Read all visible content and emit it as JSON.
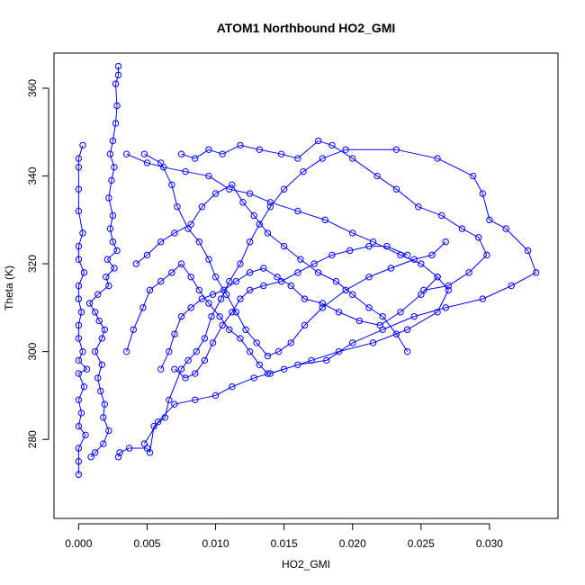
{
  "chart_data": {
    "type": "scatter",
    "title": "ATOM1 Northbound HO2_GMI",
    "xlabel": "HO2_GMI",
    "ylabel": "Theta (K)",
    "xlim": [
      -0.0018,
      0.035
    ],
    "ylim": [
      262,
      368
    ],
    "xticks": [
      0.0,
      0.005,
      0.01,
      0.015,
      0.02,
      0.025,
      0.03
    ],
    "xtick_labels": [
      "0.000",
      "0.005",
      "0.010",
      "0.015",
      "0.020",
      "0.025",
      "0.030"
    ],
    "yticks": [
      280,
      300,
      320,
      340,
      360
    ],
    "ytick_labels": [
      "280",
      "300",
      "320",
      "340",
      "360"
    ],
    "grid": false,
    "series_color": "#0000ff",
    "series": [
      {
        "values": [
          [
            0.0,
            272
          ],
          [
            0.0,
            275
          ],
          [
            0.0,
            278
          ],
          [
            0.0005,
            281
          ],
          [
            0.0,
            283
          ],
          [
            0.0002,
            286
          ],
          [
            0.0,
            289
          ],
          [
            0.0004,
            292
          ],
          [
            0.0,
            295
          ],
          [
            0.0006,
            296
          ],
          [
            0.0,
            298
          ],
          [
            0.0003,
            300
          ],
          [
            0.0,
            303
          ],
          [
            0.0,
            306
          ],
          [
            0.0002,
            309
          ],
          [
            0.0,
            312
          ],
          [
            0.0,
            315
          ],
          [
            0.0004,
            318
          ],
          [
            0.0,
            321
          ],
          [
            0.0,
            324
          ],
          [
            0.0003,
            327
          ],
          [
            0.0,
            332
          ],
          [
            0.0,
            337
          ],
          [
            0.0,
            342
          ],
          [
            0.0,
            344
          ],
          [
            0.0003,
            347
          ]
        ]
      },
      {
        "values": [
          [
            0.0009,
            276
          ],
          [
            0.0012,
            277
          ],
          [
            0.0018,
            279
          ],
          [
            0.0022,
            282
          ],
          [
            0.0018,
            285
          ],
          [
            0.0019,
            288
          ],
          [
            0.0016,
            291
          ],
          [
            0.0014,
            294
          ],
          [
            0.0017,
            297
          ],
          [
            0.0012,
            300
          ],
          [
            0.0017,
            303
          ],
          [
            0.0019,
            305
          ],
          [
            0.0015,
            307
          ],
          [
            0.0012,
            309
          ],
          [
            0.0008,
            311
          ],
          [
            0.0014,
            313
          ],
          [
            0.0022,
            315
          ],
          [
            0.002,
            317
          ],
          [
            0.0026,
            319
          ],
          [
            0.0021,
            321
          ],
          [
            0.0028,
            323
          ],
          [
            0.0025,
            325
          ],
          [
            0.0023,
            328
          ],
          [
            0.0025,
            331
          ],
          [
            0.0022,
            335
          ],
          [
            0.0024,
            339
          ],
          [
            0.0026,
            342
          ],
          [
            0.0023,
            345
          ],
          [
            0.0025,
            348
          ],
          [
            0.0027,
            352
          ],
          [
            0.0028,
            356
          ],
          [
            0.0027,
            361
          ],
          [
            0.0029,
            363
          ],
          [
            0.0029,
            365
          ]
        ]
      },
      {
        "values": [
          [
            0.0029,
            276
          ],
          [
            0.003,
            277
          ],
          [
            0.0037,
            278
          ],
          [
            0.005,
            278
          ],
          [
            0.0052,
            277
          ],
          [
            0.0055,
            283
          ],
          [
            0.0063,
            285
          ],
          [
            0.0066,
            289
          ],
          [
            0.0075,
            296
          ],
          [
            0.008,
            298
          ],
          [
            0.0086,
            300
          ],
          [
            0.0092,
            303
          ],
          [
            0.0097,
            308
          ],
          [
            0.0104,
            312
          ],
          [
            0.011,
            316
          ],
          [
            0.0118,
            320
          ],
          [
            0.0125,
            325
          ],
          [
            0.0132,
            329
          ],
          [
            0.014,
            333
          ],
          [
            0.015,
            337
          ],
          [
            0.0164,
            341
          ],
          [
            0.0178,
            344
          ],
          [
            0.0195,
            346
          ],
          [
            0.0232,
            346
          ],
          [
            0.0262,
            344
          ],
          [
            0.0288,
            340
          ],
          [
            0.0295,
            336
          ],
          [
            0.03,
            330
          ],
          [
            0.0312,
            328
          ],
          [
            0.0328,
            323
          ],
          [
            0.0334,
            318
          ],
          [
            0.0316,
            315
          ],
          [
            0.0295,
            312
          ],
          [
            0.0268,
            310
          ],
          [
            0.0245,
            308
          ],
          [
            0.0222,
            305
          ],
          [
            0.02,
            302
          ],
          [
            0.0181,
            298
          ],
          [
            0.016,
            297
          ],
          [
            0.014,
            295
          ]
        ]
      },
      {
        "values": [
          [
            0.0035,
            345
          ],
          [
            0.005,
            343
          ],
          [
            0.0062,
            342
          ],
          [
            0.0078,
            341
          ],
          [
            0.0095,
            340
          ],
          [
            0.011,
            337
          ],
          [
            0.0125,
            336
          ],
          [
            0.014,
            334
          ],
          [
            0.016,
            332
          ],
          [
            0.018,
            330
          ],
          [
            0.02,
            327
          ],
          [
            0.0215,
            325
          ],
          [
            0.0235,
            322
          ],
          [
            0.025,
            320
          ],
          [
            0.0262,
            317
          ],
          [
            0.027,
            314
          ],
          [
            0.0262,
            309
          ],
          [
            0.024,
            305
          ],
          [
            0.0215,
            302
          ],
          [
            0.019,
            300
          ],
          [
            0.017,
            298
          ],
          [
            0.015,
            296
          ],
          [
            0.0128,
            294
          ],
          [
            0.0112,
            292
          ],
          [
            0.01,
            290
          ],
          [
            0.0085,
            289
          ],
          [
            0.007,
            288
          ],
          [
            0.0058,
            284
          ],
          [
            0.0048,
            279
          ]
        ]
      },
      {
        "values": [
          [
            0.0048,
            345
          ],
          [
            0.006,
            343
          ],
          [
            0.0068,
            338
          ],
          [
            0.0072,
            333
          ],
          [
            0.008,
            328
          ],
          [
            0.0088,
            325
          ],
          [
            0.0095,
            321
          ],
          [
            0.01,
            317
          ],
          [
            0.0108,
            313
          ],
          [
            0.0115,
            309
          ],
          [
            0.0122,
            305
          ],
          [
            0.013,
            302
          ],
          [
            0.0138,
            299
          ],
          [
            0.0146,
            300
          ],
          [
            0.0155,
            302
          ],
          [
            0.0165,
            306
          ],
          [
            0.0178,
            310
          ],
          [
            0.0195,
            314
          ],
          [
            0.0212,
            317
          ],
          [
            0.0228,
            319
          ],
          [
            0.0245,
            321
          ],
          [
            0.0258,
            322
          ],
          [
            0.0268,
            325
          ]
        ]
      },
      {
        "values": [
          [
            0.0075,
            345
          ],
          [
            0.0085,
            344
          ],
          [
            0.0095,
            346
          ],
          [
            0.0105,
            345
          ],
          [
            0.0118,
            347
          ],
          [
            0.0132,
            346
          ],
          [
            0.0148,
            345
          ],
          [
            0.016,
            344
          ],
          [
            0.0175,
            348
          ],
          [
            0.0185,
            347
          ],
          [
            0.02,
            344
          ],
          [
            0.0218,
            340
          ],
          [
            0.0232,
            337
          ],
          [
            0.0248,
            333
          ],
          [
            0.0265,
            331
          ],
          [
            0.028,
            328
          ],
          [
            0.0292,
            326
          ],
          [
            0.0298,
            322
          ],
          [
            0.0285,
            318
          ],
          [
            0.027,
            315
          ],
          [
            0.0252,
            314
          ]
        ]
      },
      {
        "values": [
          [
            0.0042,
            320
          ],
          [
            0.005,
            322
          ],
          [
            0.006,
            325
          ],
          [
            0.007,
            327
          ],
          [
            0.0082,
            329
          ],
          [
            0.009,
            333
          ],
          [
            0.01,
            336
          ],
          [
            0.0112,
            338
          ],
          [
            0.012,
            334
          ],
          [
            0.0128,
            331
          ],
          [
            0.0138,
            327
          ],
          [
            0.015,
            324
          ],
          [
            0.0162,
            321
          ],
          [
            0.0175,
            318
          ],
          [
            0.0188,
            316
          ],
          [
            0.02,
            313
          ],
          [
            0.0212,
            310
          ],
          [
            0.0222,
            308
          ],
          [
            0.0232,
            304
          ],
          [
            0.024,
            300
          ]
        ]
      },
      {
        "values": [
          [
            0.0035,
            300
          ],
          [
            0.004,
            305
          ],
          [
            0.0047,
            310
          ],
          [
            0.0052,
            314
          ],
          [
            0.006,
            316
          ],
          [
            0.0068,
            318
          ],
          [
            0.0075,
            320
          ],
          [
            0.0082,
            317
          ],
          [
            0.0088,
            314
          ],
          [
            0.0095,
            311
          ],
          [
            0.0103,
            308
          ],
          [
            0.011,
            305
          ],
          [
            0.0118,
            303
          ],
          [
            0.0125,
            300
          ],
          [
            0.0132,
            297
          ],
          [
            0.0138,
            295
          ]
        ]
      },
      {
        "values": [
          [
            0.006,
            296
          ],
          [
            0.0066,
            300
          ],
          [
            0.007,
            304
          ],
          [
            0.0075,
            308
          ],
          [
            0.0082,
            310
          ],
          [
            0.009,
            312
          ],
          [
            0.0098,
            313
          ],
          [
            0.0106,
            314
          ],
          [
            0.0115,
            316
          ],
          [
            0.0125,
            318
          ],
          [
            0.0135,
            319
          ],
          [
            0.0145,
            317
          ],
          [
            0.0155,
            315
          ],
          [
            0.0165,
            312
          ],
          [
            0.0178,
            311
          ],
          [
            0.019,
            309
          ],
          [
            0.0205,
            307
          ],
          [
            0.022,
            306
          ],
          [
            0.0235,
            309
          ],
          [
            0.025,
            313
          ],
          [
            0.0262,
            317
          ]
        ]
      },
      {
        "values": [
          [
            0.007,
            296
          ],
          [
            0.0078,
            294
          ],
          [
            0.0085,
            295
          ],
          [
            0.0092,
            298
          ],
          [
            0.0098,
            302
          ],
          [
            0.0105,
            306
          ],
          [
            0.0112,
            309
          ],
          [
            0.0118,
            312
          ],
          [
            0.0125,
            314
          ],
          [
            0.0135,
            315
          ],
          [
            0.0148,
            316
          ],
          [
            0.016,
            318
          ],
          [
            0.0172,
            320
          ],
          [
            0.0185,
            322
          ],
          [
            0.0198,
            323
          ],
          [
            0.0212,
            324
          ],
          [
            0.0225,
            324
          ],
          [
            0.024,
            322
          ]
        ]
      }
    ]
  }
}
